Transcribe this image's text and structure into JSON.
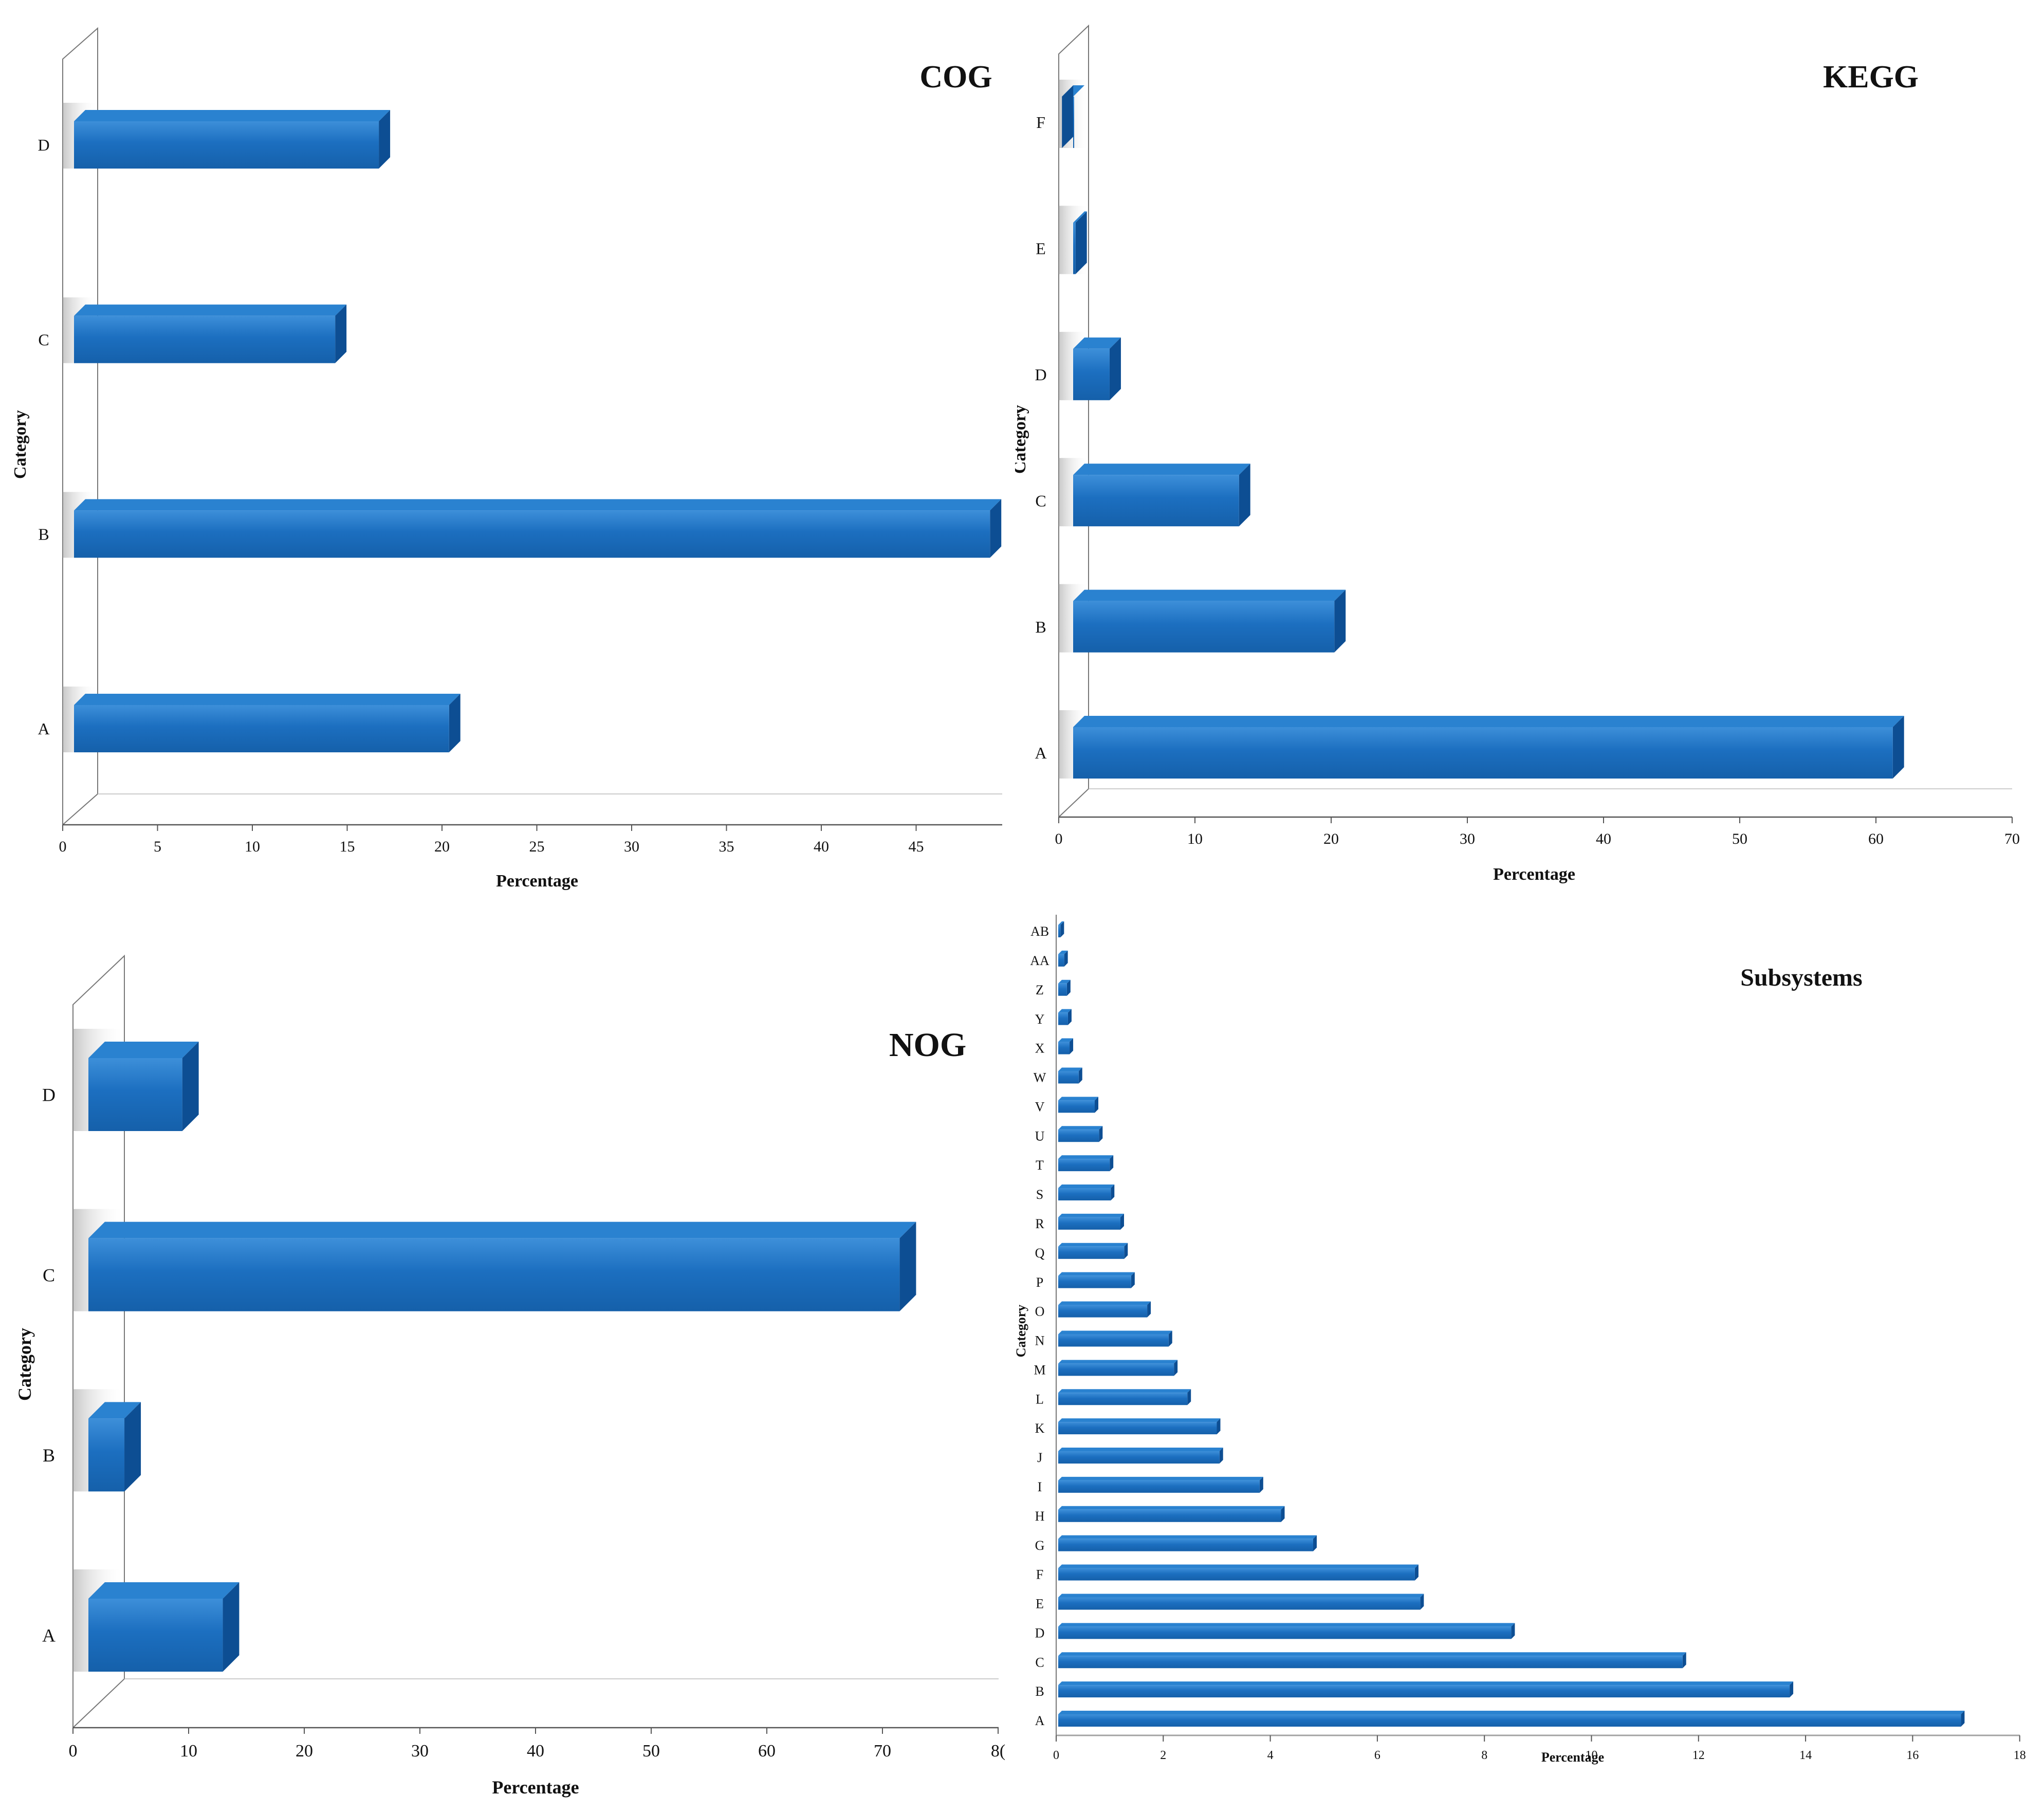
{
  "chart_data": [
    {
      "id": "cog",
      "type": "bar",
      "orientation": "horizontal",
      "title": "COG",
      "xlabel": "Percentage",
      "ylabel": "Category",
      "categories": [
        "A",
        "B",
        "C",
        "D"
      ],
      "values": [
        21,
        49.5,
        15,
        17.3
      ],
      "xlim": [
        0,
        49.5
      ],
      "xticks": [
        "0",
        "5",
        "10",
        "15",
        "20",
        "25",
        "30",
        "35",
        "40",
        "45"
      ],
      "grid": false
    },
    {
      "id": "kegg",
      "type": "bar",
      "orientation": "horizontal",
      "title": "KEGG",
      "xlabel": "Percentage",
      "ylabel": "Category",
      "categories": [
        "A",
        "B",
        "C",
        "D",
        "E",
        "F"
      ],
      "values": [
        62,
        21,
        14,
        4.5,
        2,
        1
      ],
      "xlim": [
        0,
        70
      ],
      "xticks": [
        "0",
        "10",
        "20",
        "30",
        "40",
        "50",
        "60",
        "70"
      ],
      "grid": false
    },
    {
      "id": "nog",
      "type": "bar",
      "orientation": "horizontal",
      "title": "NOG",
      "xlabel": "Percentage",
      "ylabel": "Category",
      "categories": [
        "A",
        "B",
        "C",
        "D"
      ],
      "values": [
        14.5,
        6,
        73,
        11
      ],
      "xlim": [
        0,
        80
      ],
      "xticks": [
        "0",
        "10",
        "20",
        "30",
        "40",
        "50",
        "60",
        "70",
        "8("
      ],
      "grid": false
    },
    {
      "id": "subsystems",
      "type": "bar",
      "orientation": "horizontal",
      "title": "Subsystems",
      "xlabel": "Percentage",
      "ylabel": "Category",
      "categories": [
        "A",
        "B",
        "C",
        "D",
        "E",
        "F",
        "G",
        "H",
        "I",
        "J",
        "K",
        "L",
        "M",
        "N",
        "O",
        "P",
        "Q",
        "R",
        "S",
        "T",
        "U",
        "V",
        "W",
        "X",
        "Y",
        "Z",
        "AA",
        "AB"
      ],
      "values": [
        16.9,
        13.7,
        11.7,
        8.5,
        6.8,
        6.7,
        4.8,
        4.2,
        3.8,
        3.05,
        3.0,
        2.45,
        2.2,
        2.1,
        1.7,
        1.4,
        1.27,
        1.2,
        1.02,
        1.0,
        0.8,
        0.72,
        0.42,
        0.25,
        0.22,
        0.2,
        0.15,
        0.08
      ],
      "xlim": [
        0,
        18
      ],
      "xticks": [
        "0",
        "2",
        "4",
        "6",
        "8",
        "10",
        "12",
        "14",
        "16",
        "18"
      ],
      "grid": false
    }
  ],
  "colors": {
    "bar_front": "#1c6fc0",
    "bar_highlight": "#3d8fd9",
    "bar_top": "#2a82d0",
    "bar_side": "#0d4e93",
    "axis": "#555555",
    "wall": "#777777"
  }
}
